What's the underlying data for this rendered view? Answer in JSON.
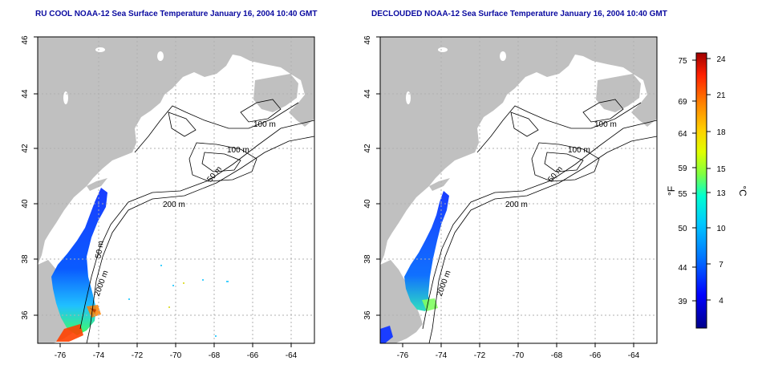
{
  "panels": [
    {
      "id": "left",
      "title": "RU COOL NOAA-12 Sea Surface Temperature January 16, 2004 10:40 GMT",
      "x_ticks": [
        "-76",
        "-74",
        "-72",
        "-70",
        "-68",
        "-66",
        "-64"
      ],
      "y_ticks": [
        "36",
        "38",
        "40",
        "42",
        "44",
        "46"
      ],
      "contour_labels": [
        "100 m",
        "100 m",
        "50 m",
        "200 m",
        "50 m",
        "2000 m"
      ]
    },
    {
      "id": "right",
      "title": "DECLOUDED NOAA-12 Sea Surface Temperature January 16, 2004 10:40 GMT",
      "x_ticks": [
        "-76",
        "-74",
        "-72",
        "-70",
        "-68",
        "-66",
        "-64"
      ],
      "y_ticks": [
        "36",
        "38",
        "40",
        "42",
        "44",
        "46"
      ],
      "contour_labels": [
        "100 m",
        "100 m",
        "50 m",
        "200 m",
        "2000 m"
      ]
    }
  ],
  "colorbar": {
    "fahrenheit_ticks": [
      "75",
      "69",
      "64",
      "59",
      "55",
      "50",
      "44",
      "39"
    ],
    "celsius_ticks": [
      "24",
      "21",
      "18",
      "15",
      "13",
      "10",
      "7",
      "4"
    ],
    "fahrenheit_unit": "°F",
    "celsius_unit": "°C",
    "colors": [
      "#00008b",
      "#0000ff",
      "#0078ff",
      "#00c8ff",
      "#00ffd0",
      "#80ff40",
      "#e0ff00",
      "#ffd000",
      "#ff8000",
      "#ff2000",
      "#a00000"
    ]
  },
  "colors": {
    "land": "#c0c0c0",
    "ocean": "#ffffff",
    "title": "#0a0aa0"
  }
}
